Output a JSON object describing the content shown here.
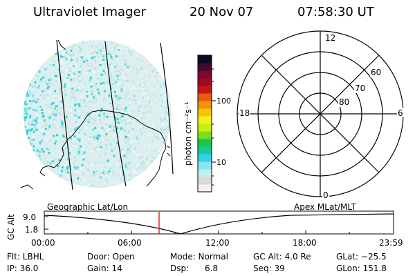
{
  "header": {
    "title": "Ultraviolet Imager",
    "date": "20 Nov 07",
    "time": "07:58:30 UT"
  },
  "colorbar": {
    "unit_label": "photon cm⁻²s⁻¹",
    "ticks": [
      "100",
      "10"
    ],
    "colors": [
      "#f2f2f2",
      "#d9d9d9",
      "#bdeff0",
      "#8ce6ee",
      "#2fd3e6",
      "#17c9a0",
      "#19c84a",
      "#7bde1a",
      "#c9ef10",
      "#eef21a",
      "#f7c40a",
      "#f29208",
      "#e65c10",
      "#c81414",
      "#a00a1e",
      "#7a0830",
      "#420a2e",
      "#0c0a22"
    ]
  },
  "earth_panel": {
    "label": "Geographic Lat/Lon",
    "highlight_color": "#28d8c8"
  },
  "polar_plot": {
    "label": "Apex MLat/MLT",
    "mlt_labels": {
      "top": "12",
      "left": "18",
      "right": "6",
      "bottom": "0"
    },
    "lat_labels": [
      "60",
      "70",
      "80"
    ]
  },
  "timeline": {
    "axis_label": "GC Alt",
    "y_ticks": [
      "9.0",
      "1.8"
    ],
    "x_ticks": [
      "00:00",
      "06:00",
      "12:00",
      "18:00",
      "23:59"
    ],
    "current_marker": "07:58",
    "marker_color": "#cc2222"
  },
  "info": {
    "row1": {
      "filter": "Flt: LBHL",
      "door": "Door: Open",
      "mode": "Mode: Normal",
      "gc_alt": "GC Alt: 4.0 Re",
      "glat": "GLat: −25.5"
    },
    "row2": {
      "ip": "IP: 36.0",
      "gain": "Gain: 14",
      "dsp": "Dsp:      6.8",
      "seq": "Seq: 39",
      "glon": "GLon: 151.8"
    }
  }
}
